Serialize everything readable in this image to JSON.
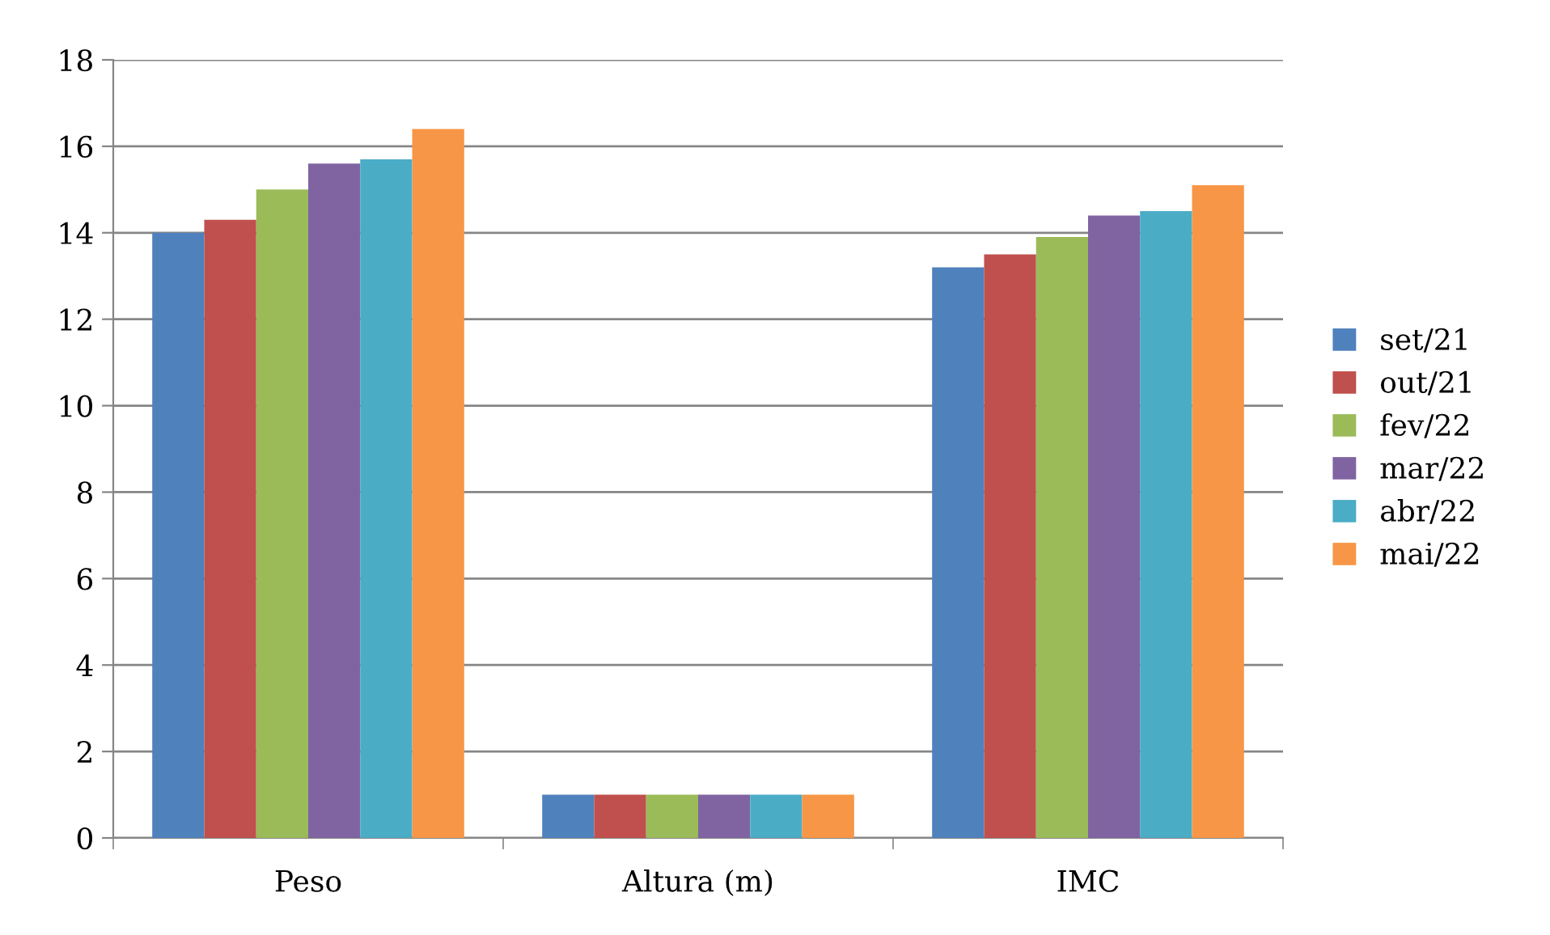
{
  "chart_data": {
    "type": "bar",
    "categories": [
      "Peso",
      "Altura (m)",
      "IMC"
    ],
    "series": [
      {
        "name": "set/21",
        "color": "#4f81bd",
        "values": [
          14.0,
          1.0,
          13.2
        ]
      },
      {
        "name": "out/21",
        "color": "#c0504d",
        "values": [
          14.3,
          1.0,
          13.5
        ]
      },
      {
        "name": "fev/22",
        "color": "#9bbb59",
        "values": [
          15.0,
          1.0,
          13.9
        ]
      },
      {
        "name": "mar/22",
        "color": "#8064a2",
        "values": [
          15.6,
          1.0,
          14.4
        ]
      },
      {
        "name": "abr/22",
        "color": "#4bacc6",
        "values": [
          15.7,
          1.0,
          14.5
        ]
      },
      {
        "name": "mai/22",
        "color": "#f79646",
        "values": [
          16.4,
          1.0,
          15.1
        ]
      }
    ],
    "ylim": [
      0,
      18
    ],
    "yticks": [
      0,
      2,
      4,
      6,
      8,
      10,
      12,
      14,
      16,
      18
    ],
    "grid": "y",
    "legend": "right"
  }
}
